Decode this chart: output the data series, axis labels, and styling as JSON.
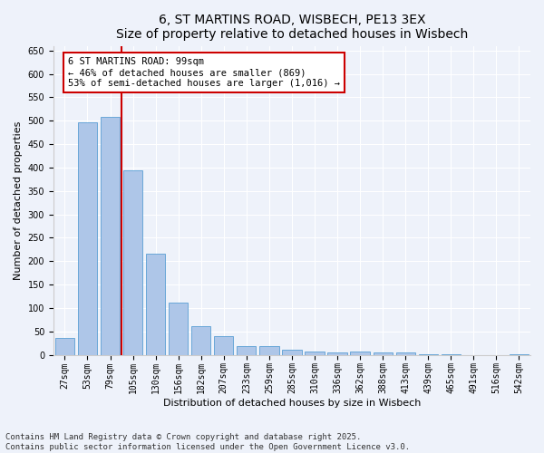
{
  "title_line1": "6, ST MARTINS ROAD, WISBECH, PE13 3EX",
  "title_line2": "Size of property relative to detached houses in Wisbech",
  "xlabel": "Distribution of detached houses by size in Wisbech",
  "ylabel": "Number of detached properties",
  "categories": [
    "27sqm",
    "53sqm",
    "79sqm",
    "105sqm",
    "130sqm",
    "156sqm",
    "182sqm",
    "207sqm",
    "233sqm",
    "259sqm",
    "285sqm",
    "310sqm",
    "336sqm",
    "362sqm",
    "388sqm",
    "413sqm",
    "439sqm",
    "465sqm",
    "491sqm",
    "516sqm",
    "542sqm"
  ],
  "values": [
    35,
    497,
    508,
    393,
    215,
    112,
    62,
    40,
    18,
    18,
    10,
    7,
    5,
    7,
    5,
    4,
    1,
    1,
    0,
    0,
    1
  ],
  "bar_color": "#aec6e8",
  "bar_edge_color": "#5a9fd4",
  "highlight_line_color": "#cc0000",
  "annotation_text": "6 ST MARTINS ROAD: 99sqm\n← 46% of detached houses are smaller (869)\n53% of semi-detached houses are larger (1,016) →",
  "annotation_box_color": "#ffffff",
  "annotation_box_edge_color": "#cc0000",
  "ylim": [
    0,
    660
  ],
  "yticks": [
    0,
    50,
    100,
    150,
    200,
    250,
    300,
    350,
    400,
    450,
    500,
    550,
    600,
    650
  ],
  "background_color": "#eef2fa",
  "footer_text": "Contains HM Land Registry data © Crown copyright and database right 2025.\nContains public sector information licensed under the Open Government Licence v3.0.",
  "title_fontsize": 10,
  "axis_label_fontsize": 8,
  "tick_fontsize": 7,
  "annotation_fontsize": 7.5,
  "footer_fontsize": 6.5
}
